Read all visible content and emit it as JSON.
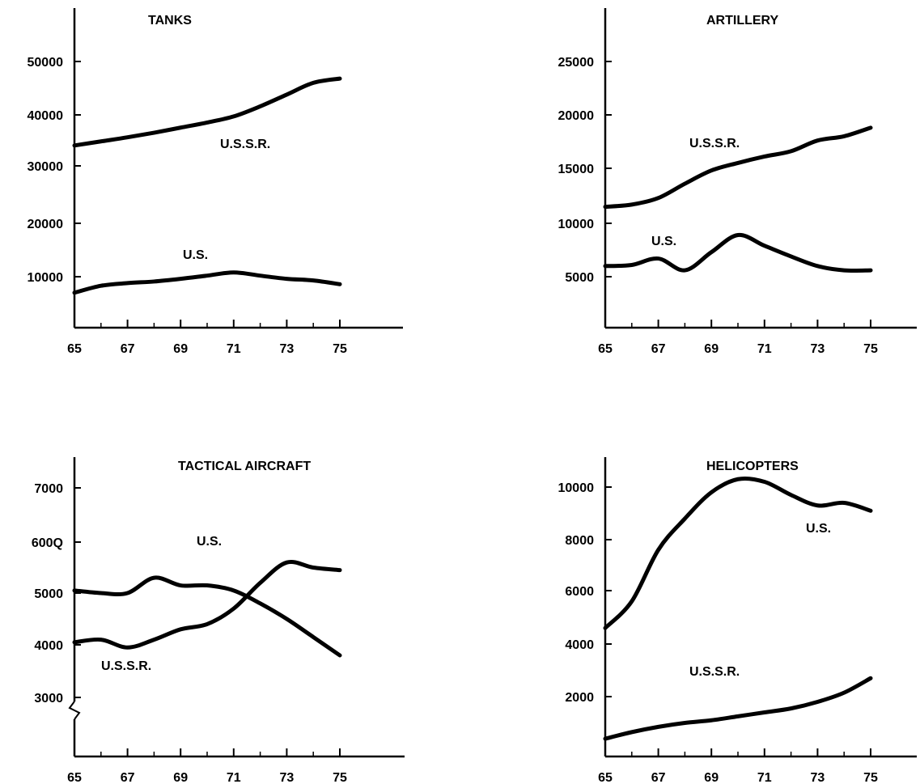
{
  "chart_data": [
    {
      "type": "line",
      "title": "TANKS",
      "xlim": [
        65,
        75
      ],
      "ylim": [
        0,
        50000
      ],
      "x_ticks": [
        65,
        67,
        69,
        71,
        73,
        75
      ],
      "y_ticks": [
        10000,
        20000,
        30000,
        40000,
        50000
      ],
      "series": [
        {
          "name": "U.S.S.R.",
          "x": [
            65,
            66,
            67,
            68,
            69,
            70,
            71,
            72,
            73,
            74,
            75
          ],
          "values": [
            34000,
            34800,
            35600,
            36500,
            37500,
            38500,
            39700,
            41600,
            43800,
            46000,
            46800
          ]
        },
        {
          "name": "U.S.",
          "x": [
            65,
            66,
            67,
            68,
            69,
            70,
            71,
            72,
            73,
            74,
            75
          ],
          "values": [
            7000,
            8300,
            8800,
            9100,
            9600,
            10200,
            10800,
            10200,
            9600,
            9300,
            8600
          ]
        }
      ]
    },
    {
      "type": "line",
      "title": "ARTILLERY",
      "xlim": [
        65,
        75
      ],
      "ylim": [
        0,
        25000
      ],
      "x_ticks": [
        65,
        67,
        69,
        71,
        73,
        75
      ],
      "y_ticks": [
        5000,
        10000,
        15000,
        20000,
        25000
      ],
      "series": [
        {
          "name": "U.S.S.R.",
          "x": [
            65,
            66,
            67,
            68,
            69,
            70,
            71,
            72,
            73,
            74,
            75
          ],
          "values": [
            11500,
            11700,
            12300,
            13600,
            14800,
            15500,
            16100,
            16600,
            17600,
            18000,
            18800
          ]
        },
        {
          "name": "U.S.",
          "x": [
            65,
            66,
            67,
            68,
            69,
            70,
            71,
            72,
            73,
            74,
            75
          ],
          "values": [
            6000,
            6100,
            6700,
            5600,
            7300,
            8900,
            7900,
            6900,
            6000,
            5600,
            5600
          ]
        }
      ]
    },
    {
      "type": "line",
      "title": "TACTICAL AIRCRAFT",
      "xlim": [
        65,
        75
      ],
      "ylim": [
        2000,
        7000
      ],
      "x_ticks": [
        65,
        67,
        69,
        71,
        73,
        75
      ],
      "y_ticks": [
        3000,
        4000,
        5000,
        6000,
        7000
      ],
      "y_tick_labels": [
        "3000",
        "4000",
        "5000",
        "600Q",
        "7000"
      ],
      "axis_break": true,
      "series": [
        {
          "name": "U.S.",
          "x": [
            65,
            66,
            67,
            68,
            69,
            70,
            71,
            72,
            73,
            74,
            75
          ],
          "values": [
            5050,
            5000,
            5000,
            5300,
            5150,
            5150,
            5050,
            4800,
            4500,
            4150,
            3800
          ]
        },
        {
          "name": "U.S.S.R.",
          "x": [
            65,
            66,
            67,
            68,
            69,
            70,
            71,
            72,
            73,
            74,
            75
          ],
          "values": [
            4050,
            4100,
            3950,
            4100,
            4300,
            4400,
            4700,
            5200,
            5600,
            5500,
            5450
          ]
        }
      ]
    },
    {
      "type": "line",
      "title": "HELICOPTERS",
      "xlim": [
        65,
        75
      ],
      "ylim": [
        0,
        10000
      ],
      "x_ticks": [
        65,
        67,
        69,
        71,
        73,
        75
      ],
      "y_ticks": [
        2000,
        4000,
        6000,
        8000,
        10000
      ],
      "series": [
        {
          "name": "U.S.",
          "x": [
            65,
            66,
            67,
            68,
            69,
            70,
            71,
            72,
            73,
            74,
            75
          ],
          "values": [
            4600,
            5600,
            7600,
            8800,
            9800,
            10300,
            10200,
            9700,
            9300,
            9400,
            9100
          ]
        },
        {
          "name": "U.S.S.R.",
          "x": [
            65,
            66,
            67,
            68,
            69,
            70,
            71,
            72,
            73,
            74,
            75
          ],
          "values": [
            400,
            650,
            850,
            1000,
            1100,
            1250,
            1400,
            1550,
            1800,
            2150,
            2700
          ]
        }
      ]
    }
  ]
}
